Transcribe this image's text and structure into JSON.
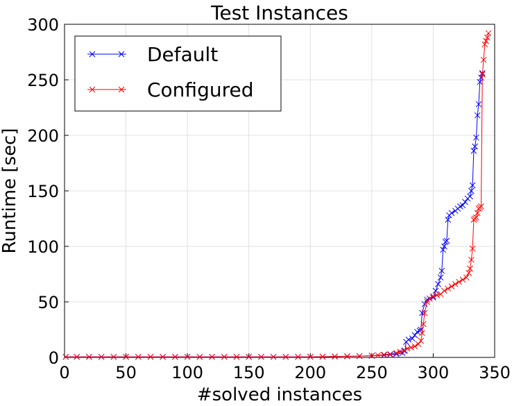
{
  "chart_data": {
    "type": "line",
    "title": "Test Instances",
    "x_label": "#solved instances",
    "y_label": "Runtime [sec]",
    "xlim": [
      0,
      350
    ],
    "xticks": [
      0,
      50,
      100,
      150,
      200,
      250,
      300,
      350
    ],
    "ylim": [
      0,
      300
    ],
    "yticks": [
      0,
      50,
      100,
      150,
      200,
      250,
      300
    ],
    "grid": true,
    "legend": "upper left",
    "marker": "x",
    "series": [
      {
        "name": "Default",
        "color": "#0000ff",
        "x": [
          1,
          10,
          20,
          30,
          40,
          50,
          60,
          70,
          80,
          90,
          100,
          110,
          120,
          130,
          140,
          150,
          160,
          170,
          180,
          190,
          200,
          210,
          220,
          230,
          240,
          250,
          260,
          265,
          270,
          275,
          277,
          278,
          280,
          283,
          285,
          287,
          289,
          290,
          291,
          293,
          295,
          297,
          300,
          302,
          304,
          306,
          307,
          308,
          309,
          310,
          311,
          312,
          313,
          315,
          318,
          320,
          322,
          324,
          326,
          328,
          330,
          331,
          332,
          333,
          334,
          335,
          336,
          337,
          338,
          339,
          340
        ],
        "values": [
          0.5,
          0.5,
          0.5,
          0.5,
          0.5,
          0.5,
          0.5,
          0.5,
          0.5,
          0.5,
          0.5,
          0.5,
          0.5,
          0.5,
          0.5,
          0.5,
          0.5,
          0.5,
          0.5,
          0.5,
          0.5,
          0.6,
          0.8,
          1,
          1.2,
          1.5,
          2,
          2.5,
          3,
          4,
          6,
          14,
          16,
          17,
          20,
          23,
          24,
          25,
          40,
          48,
          52,
          53,
          54,
          60,
          66,
          72,
          78,
          97,
          100,
          104,
          105,
          124,
          128,
          130,
          132,
          134,
          136,
          137,
          140,
          143,
          145,
          150,
          155,
          186,
          190,
          198,
          218,
          228,
          248,
          252,
          256
        ]
      },
      {
        "name": "Configured",
        "color": "#ff0000",
        "x": [
          1,
          10,
          20,
          30,
          40,
          50,
          60,
          70,
          80,
          90,
          100,
          110,
          120,
          130,
          140,
          150,
          160,
          170,
          180,
          190,
          200,
          210,
          220,
          230,
          240,
          250,
          255,
          260,
          265,
          270,
          273,
          276,
          279,
          282,
          285,
          288,
          290,
          291,
          292,
          293,
          295,
          297,
          300,
          303,
          306,
          309,
          312,
          315,
          318,
          321,
          324,
          327,
          329,
          330,
          331,
          332,
          333,
          334,
          335,
          336,
          337,
          338,
          339,
          340,
          341,
          342,
          343,
          344,
          345
        ],
        "values": [
          0.5,
          0.5,
          0.5,
          0.5,
          0.5,
          0.5,
          0.5,
          0.5,
          0.5,
          0.5,
          0.5,
          0.5,
          0.5,
          0.5,
          0.5,
          0.5,
          0.5,
          0.5,
          0.5,
          0.5,
          0.5,
          0.6,
          0.8,
          1,
          1.2,
          1.5,
          2,
          2.5,
          3,
          4,
          5,
          6,
          8,
          9,
          10,
          12,
          15,
          22,
          30,
          40,
          50,
          53,
          55,
          56,
          57,
          60,
          62,
          64,
          66,
          68,
          70,
          72,
          76,
          80,
          88,
          98,
          124,
          125,
          126,
          130,
          134,
          135,
          136,
          255,
          268,
          282,
          285,
          288,
          292
        ]
      }
    ]
  }
}
